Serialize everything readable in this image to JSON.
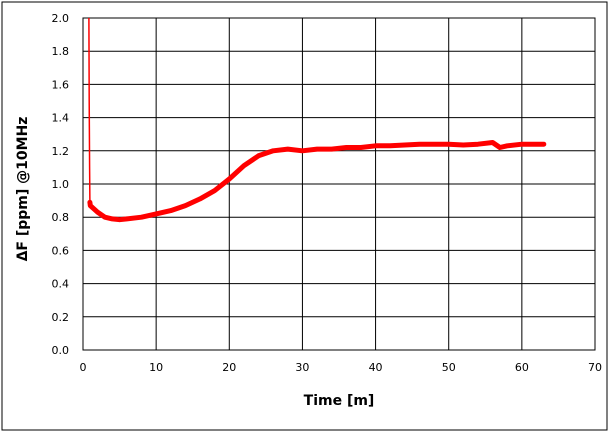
{
  "chart_data": {
    "type": "line",
    "xlabel": "Time [m]",
    "ylabel": "ΔF [ppm] @10MHz",
    "xlim": [
      0,
      70
    ],
    "ylim": [
      0,
      2.0
    ],
    "x_ticks": [
      0,
      10,
      20,
      30,
      40,
      50,
      60,
      70
    ],
    "y_ticks": [
      0.0,
      0.2,
      0.4,
      0.6,
      0.8,
      1.0,
      1.2,
      1.4,
      1.6,
      1.8,
      2.0
    ],
    "x_tick_labels": [
      "0",
      "10",
      "20",
      "30",
      "40",
      "50",
      "60",
      "70"
    ],
    "y_tick_labels": [
      "0.0",
      "0.2",
      "0.4",
      "0.6",
      "0.8",
      "1.0",
      "1.2",
      "1.4",
      "1.6",
      "1.8",
      "2.0"
    ],
    "grid": true,
    "series": [
      {
        "color": "#ff0000",
        "x": [
          0.8,
          0.85,
          0.9,
          0.95,
          1.0,
          2,
          3,
          4,
          5,
          6,
          8,
          10,
          12,
          14,
          16,
          18,
          20,
          22,
          24,
          26,
          28,
          30,
          32,
          34,
          36,
          38,
          40,
          42,
          44,
          46,
          48,
          50,
          52,
          54,
          56,
          57,
          58,
          60,
          62,
          63
        ],
        "y": [
          2.0,
          1.5,
          1.1,
          0.89,
          0.87,
          0.83,
          0.8,
          0.79,
          0.785,
          0.79,
          0.8,
          0.82,
          0.84,
          0.87,
          0.91,
          0.96,
          1.03,
          1.11,
          1.17,
          1.2,
          1.21,
          1.2,
          1.21,
          1.21,
          1.22,
          1.22,
          1.23,
          1.23,
          1.235,
          1.24,
          1.24,
          1.24,
          1.235,
          1.24,
          1.25,
          1.22,
          1.23,
          1.24,
          1.24,
          1.24
        ]
      }
    ]
  }
}
